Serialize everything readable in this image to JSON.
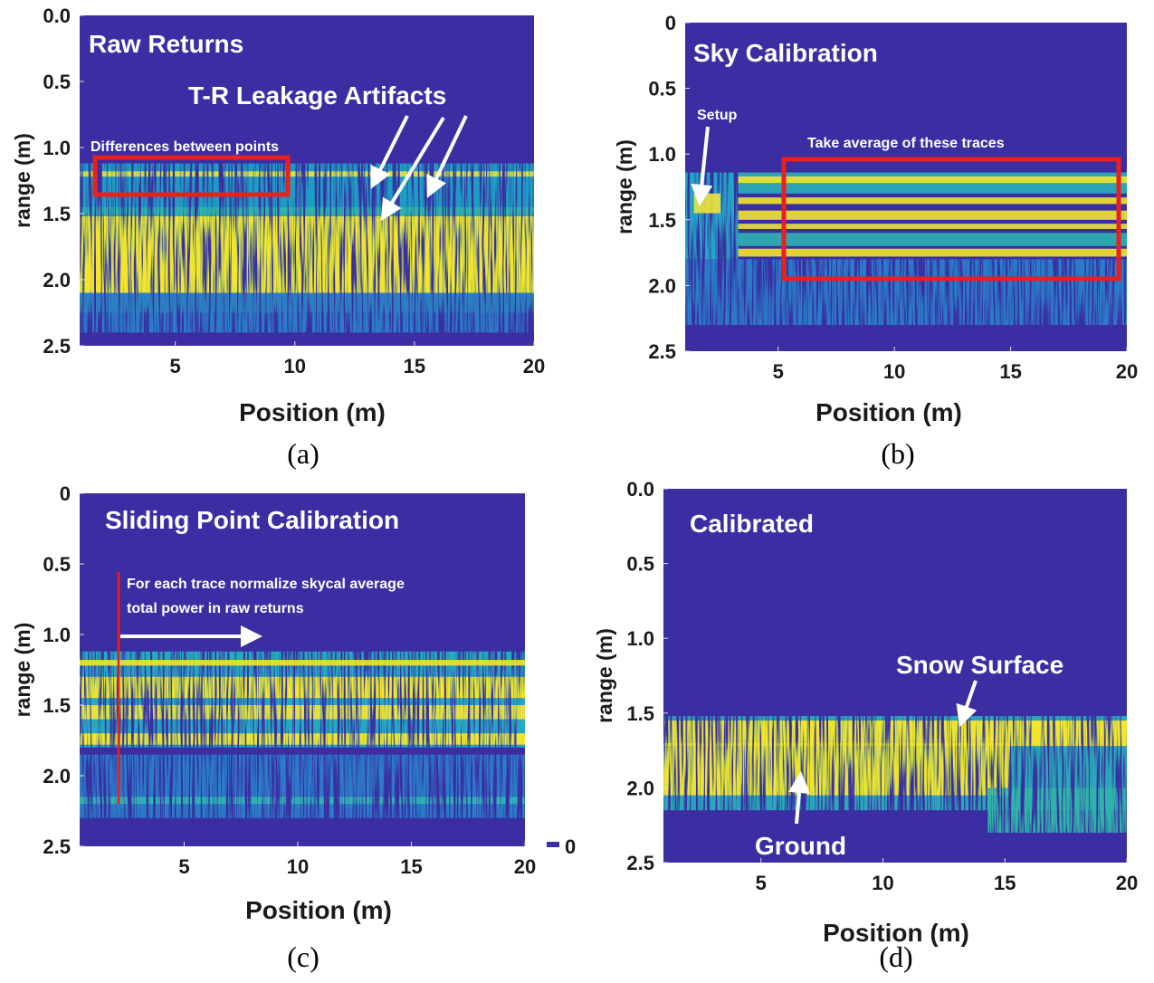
{
  "chart_data": [
    {
      "type": "heatmap",
      "title": "Raw Returns",
      "caption": "(a)",
      "xlabel": "Position (m)",
      "ylabel": "range (m)",
      "xlim": [
        1,
        20
      ],
      "xticks": [
        5,
        10,
        15,
        20
      ],
      "ylim": [
        0,
        2.5
      ],
      "y_inverted": true,
      "yticks": [
        {
          "value": 0,
          "label": "0.0"
        },
        0.5,
        {
          "value": 1,
          "label": "1.0"
        },
        1.5,
        {
          "value": 2,
          "label": "2.0"
        },
        2.5
      ],
      "annotations": [
        "T-R Leakage Artifacts",
        "Differences between points"
      ]
    },
    {
      "type": "heatmap",
      "title": "Sky Calibration",
      "caption": "(b)",
      "xlabel": "Position (m)",
      "ylabel": "range (m)",
      "xlim": [
        1,
        20
      ],
      "xticks": [
        5,
        10,
        15,
        20
      ],
      "ylim": [
        0,
        2.5
      ],
      "y_inverted": true,
      "yticks": [
        0,
        0.5,
        {
          "value": 1,
          "label": "1.0"
        },
        1.5,
        {
          "value": 2,
          "label": "2.0"
        },
        2.5
      ],
      "annotations": [
        "Setup",
        "Take average of these traces"
      ]
    },
    {
      "type": "heatmap",
      "title": "Sliding Point Calibration",
      "caption": "(c)",
      "xlabel": "Position (m)",
      "ylabel": "range (m)",
      "xlim": [
        0.4,
        20
      ],
      "xticks": [
        5,
        10,
        15,
        20
      ],
      "ylim": [
        0,
        2.5
      ],
      "y_inverted": true,
      "yticks": [
        0,
        0.5,
        {
          "value": 1,
          "label": "1.0"
        },
        1.5,
        {
          "value": 2,
          "label": "2.0"
        },
        2.5
      ],
      "colorbar_ticks": [
        0
      ],
      "annotations": [
        "For each trace normalize skycal average",
        "total power in raw returns"
      ]
    },
    {
      "type": "heatmap",
      "title": "Calibrated",
      "caption": "(d)",
      "xlabel": "Position (m)",
      "ylabel": "range (m)",
      "xlim": [
        1,
        20
      ],
      "xticks": [
        5,
        10,
        15,
        20
      ],
      "ylim": [
        0,
        2.5
      ],
      "y_inverted": true,
      "yticks": [
        {
          "value": 0,
          "label": "0.0"
        },
        0.5,
        {
          "value": 1,
          "label": "1.0"
        },
        1.5,
        {
          "value": 2,
          "label": "2.0"
        },
        2.5
      ],
      "annotations": [
        "Snow Surface",
        "Ground"
      ]
    }
  ]
}
